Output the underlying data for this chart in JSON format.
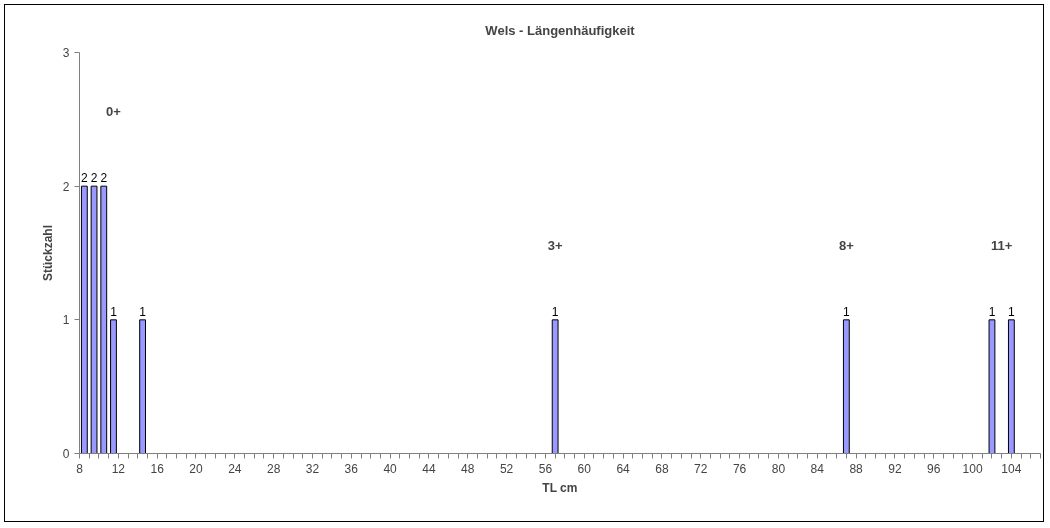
{
  "chart_data": {
    "type": "bar",
    "title": "Wels - Längenhäufigkeit",
    "xlabel": "TL cm",
    "ylabel": "Stückzahl",
    "x": [
      8.5,
      9.5,
      10.5,
      11.5,
      14.5,
      57,
      87,
      102,
      104
    ],
    "values": [
      2,
      2,
      2,
      1,
      1,
      1,
      1,
      1,
      1
    ],
    "color": "#9999ff",
    "data_labels": true,
    "grid": false,
    "xlim": [
      8,
      107
    ],
    "ylim": [
      0,
      3
    ],
    "yticks": [
      0,
      1,
      2,
      3
    ],
    "xticks": [
      8,
      {
        "value": 9,
        "label": null
      },
      {
        "value": 10,
        "label": null
      },
      {
        "value": 11,
        "label": null
      },
      12,
      {
        "value": 13,
        "label": null
      },
      {
        "value": 14,
        "label": null
      },
      {
        "value": 15,
        "label": null
      },
      16,
      {
        "value": 17,
        "label": null
      },
      {
        "value": 18,
        "label": null
      },
      {
        "value": 19,
        "label": null
      },
      20,
      {
        "value": 21,
        "label": null
      },
      {
        "value": 22,
        "label": null
      },
      {
        "value": 23,
        "label": null
      },
      24,
      {
        "value": 25,
        "label": null
      },
      {
        "value": 26,
        "label": null
      },
      {
        "value": 27,
        "label": null
      },
      28,
      {
        "value": 29,
        "label": null
      },
      {
        "value": 30,
        "label": null
      },
      {
        "value": 31,
        "label": null
      },
      32,
      {
        "value": 33,
        "label": null
      },
      {
        "value": 34,
        "label": null
      },
      {
        "value": 35,
        "label": null
      },
      36,
      {
        "value": 37,
        "label": null
      },
      {
        "value": 38,
        "label": null
      },
      {
        "value": 39,
        "label": null
      },
      40,
      {
        "value": 41,
        "label": null
      },
      {
        "value": 42,
        "label": null
      },
      {
        "value": 43,
        "label": null
      },
      44,
      {
        "value": 45,
        "label": null
      },
      {
        "value": 46,
        "label": null
      },
      {
        "value": 47,
        "label": null
      },
      48,
      {
        "value": 49,
        "label": null
      },
      {
        "value": 50,
        "label": null
      },
      {
        "value": 51,
        "label": null
      },
      52,
      {
        "value": 53,
        "label": null
      },
      {
        "value": 54,
        "label": null
      },
      {
        "value": 55,
        "label": null
      },
      56,
      {
        "value": 57,
        "label": null
      },
      {
        "value": 58,
        "label": null
      },
      {
        "value": 59,
        "label": null
      },
      60,
      {
        "value": 61,
        "label": null
      },
      {
        "value": 62,
        "label": null
      },
      {
        "value": 63,
        "label": null
      },
      64,
      {
        "value": 65,
        "label": null
      },
      {
        "value": 66,
        "label": null
      },
      {
        "value": 67,
        "label": null
      },
      68,
      {
        "value": 69,
        "label": null
      },
      {
        "value": 70,
        "label": null
      },
      {
        "value": 71,
        "label": null
      },
      72,
      {
        "value": 73,
        "label": null
      },
      {
        "value": 74,
        "label": null
      },
      {
        "value": 75,
        "label": null
      },
      76,
      {
        "value": 77,
        "label": null
      },
      {
        "value": 78,
        "label": null
      },
      {
        "value": 79,
        "label": null
      },
      80,
      {
        "value": 81,
        "label": null
      },
      {
        "value": 82,
        "label": null
      },
      {
        "value": 83,
        "label": null
      },
      84,
      {
        "value": 85,
        "label": null
      },
      {
        "value": 86,
        "label": null
      },
      {
        "value": 87,
        "label": null
      },
      88,
      {
        "value": 89,
        "label": null
      },
      {
        "value": 90,
        "label": null
      },
      {
        "value": 91,
        "label": null
      },
      92,
      {
        "value": 93,
        "label": null
      },
      {
        "value": 94,
        "label": null
      },
      {
        "value": 95,
        "label": null
      },
      96,
      {
        "value": 97,
        "label": null
      },
      {
        "value": 98,
        "label": null
      },
      {
        "value": 99,
        "label": null
      },
      100,
      {
        "value": 101,
        "label": null
      },
      {
        "value": 102,
        "label": null
      },
      {
        "value": 103,
        "label": null
      },
      104,
      {
        "value": 105,
        "label": null
      },
      {
        "value": 106,
        "label": null
      },
      {
        "value": 107,
        "label": null
      }
    ],
    "annotations": [
      "0+",
      "3+",
      "8+",
      "11+"
    ]
  }
}
